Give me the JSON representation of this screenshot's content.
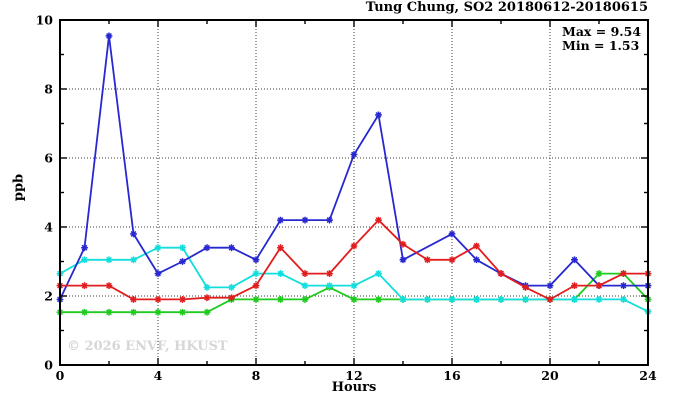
{
  "chart": {
    "title": "Tung Chung, SO2 20180612-20180615",
    "annotation": {
      "max_label": "Max = 9.54",
      "min_label": "Min = 1.53"
    },
    "watermark": "© 2026 ENVF, HKUST",
    "colors": {
      "background": "#ffffff",
      "axis": "#000000",
      "grid": "#3c3c3c",
      "watermark": "#d6d6d6"
    }
  },
  "chart_data": {
    "type": "line",
    "title": "Tung Chung, SO2 20180612-20180615",
    "xlabel": "Hours",
    "ylabel": "ppb",
    "xlim": [
      0,
      24
    ],
    "ylim": [
      0,
      10
    ],
    "x_major_ticks": [
      0,
      4,
      8,
      12,
      16,
      20,
      24
    ],
    "x_minor_ticks": [
      2,
      6,
      10,
      14,
      18,
      22
    ],
    "y_major_ticks": [
      0,
      2,
      4,
      6,
      8,
      10
    ],
    "y_minor_ticks": [
      1,
      3,
      5,
      7,
      9
    ],
    "grid": "dotted lines at major ticks, ticks inward on all four borders",
    "legend_position": "none",
    "marker": "asterisk",
    "stat_max": 9.54,
    "stat_min": 1.53,
    "x": [
      0,
      1,
      2,
      3,
      4,
      5,
      6,
      7,
      8,
      9,
      10,
      11,
      12,
      13,
      14,
      15,
      16,
      17,
      18,
      19,
      20,
      21,
      22,
      23,
      24
    ],
    "series": [
      {
        "name": "green-line",
        "color": "#1ecb1e",
        "values": [
          1.53,
          1.53,
          1.53,
          1.53,
          1.53,
          1.53,
          1.53,
          1.9,
          1.9,
          1.9,
          1.9,
          2.25,
          1.9,
          1.9,
          1.9,
          1.9,
          1.9,
          1.9,
          1.9,
          1.9,
          1.9,
          1.9,
          2.65,
          2.65,
          1.9
        ]
      },
      {
        "name": "cyan-line",
        "color": "#12dede",
        "values": [
          2.65,
          3.05,
          3.05,
          3.05,
          3.4,
          3.4,
          2.25,
          2.25,
          2.65,
          2.65,
          2.3,
          2.3,
          2.3,
          2.65,
          1.9,
          1.9,
          1.9,
          1.9,
          1.9,
          1.9,
          1.9,
          1.9,
          1.9,
          1.9,
          1.55
        ]
      },
      {
        "name": "blue-line",
        "color": "#2828d0",
        "values": [
          1.9,
          3.4,
          9.54,
          3.8,
          2.65,
          3.0,
          3.4,
          3.4,
          3.05,
          4.2,
          4.2,
          4.2,
          6.1,
          7.25,
          3.05,
          null,
          3.8,
          3.05,
          2.65,
          2.3,
          2.3,
          3.05,
          2.3,
          2.3,
          2.3
        ]
      },
      {
        "name": "red-line",
        "color": "#e21d1d",
        "values": [
          2.3,
          2.3,
          2.3,
          1.9,
          1.9,
          1.9,
          1.95,
          1.95,
          2.3,
          3.4,
          2.65,
          2.65,
          3.45,
          4.2,
          3.5,
          3.05,
          3.05,
          3.45,
          2.65,
          2.25,
          1.9,
          2.3,
          2.3,
          2.65,
          2.65
        ]
      }
    ]
  }
}
